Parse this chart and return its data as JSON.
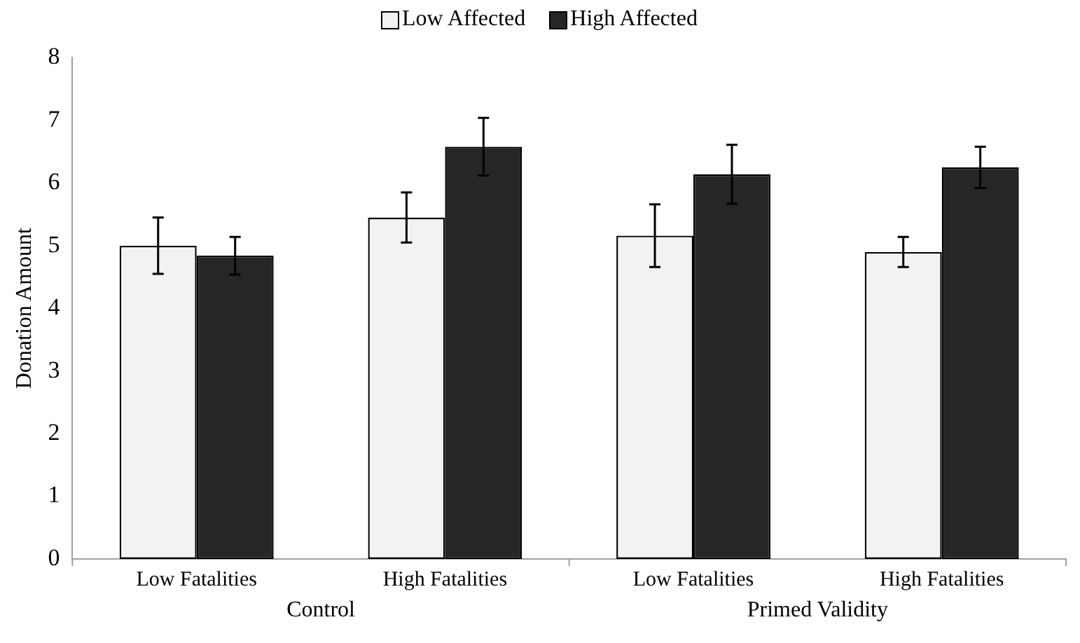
{
  "chart_data": {
    "type": "bar",
    "ylabel": "Donation Amount",
    "categories": [
      "Low Fatalities",
      "High Fatalities",
      "Low Fatalities",
      "High Fatalities"
    ],
    "series": [
      {
        "name": "Low Affected",
        "color": "#f2f2f2",
        "values": [
          5.0,
          5.45,
          5.16,
          4.9
        ],
        "errors": [
          0.45,
          0.4,
          0.5,
          0.24
        ]
      },
      {
        "name": "High Affected",
        "color": "#262626",
        "values": [
          4.84,
          6.58,
          6.14,
          6.25
        ],
        "errors": [
          0.3,
          0.46,
          0.47,
          0.33
        ]
      }
    ],
    "annotations": [
      "Control",
      "Primed Validity"
    ],
    "ylim": [
      0,
      8
    ],
    "yticks": [
      0,
      1,
      2,
      3,
      4,
      5,
      6,
      7,
      8
    ],
    "grid": false,
    "legend": "top"
  }
}
